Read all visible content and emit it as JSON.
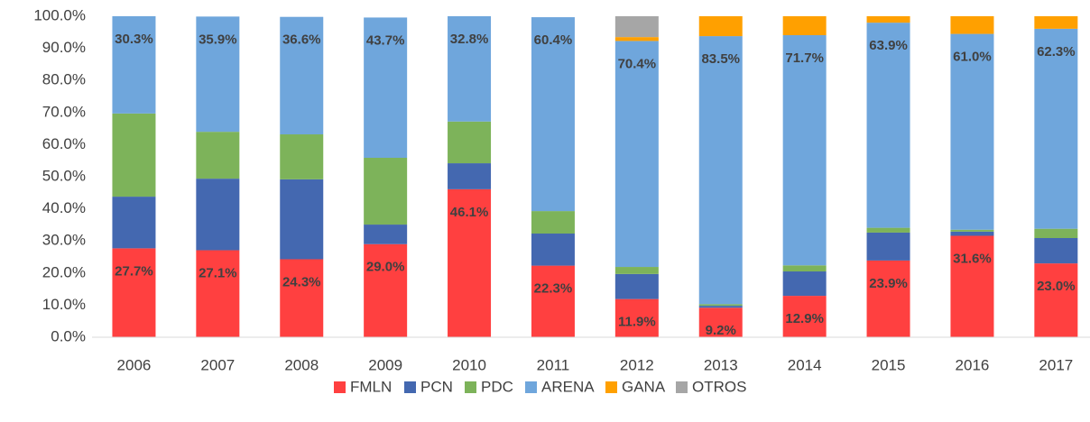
{
  "chart_data": {
    "type": "stacked_bar",
    "categories": [
      "2006",
      "2007",
      "2008",
      "2009",
      "2010",
      "2011",
      "2012",
      "2013",
      "2014",
      "2015",
      "2016",
      "2017"
    ],
    "series": [
      {
        "name": "FMLN",
        "color": "#ff4040",
        "values": [
          27.7,
          27.1,
          24.3,
          29.0,
          46.1,
          22.3,
          11.9,
          9.2,
          12.9,
          23.9,
          31.6,
          23.0
        ],
        "value_labels": [
          "27.7%",
          "27.1%",
          "24.3%",
          "29.0%",
          "46.1%",
          "22.3%",
          "11.9%",
          "9.2%",
          "12.9%",
          "23.9%",
          "31.6%",
          "23.0%"
        ]
      },
      {
        "name": "PCN",
        "color": "#4468b0",
        "values": [
          16.1,
          22.3,
          24.9,
          6.1,
          8.1,
          10.0,
          7.8,
          0.6,
          7.6,
          8.7,
          1.3,
          7.9
        ]
      },
      {
        "name": "PDC",
        "color": "#7db35a",
        "values": [
          25.9,
          14.6,
          14.0,
          20.8,
          13.0,
          7.0,
          2.2,
          0.5,
          1.9,
          1.5,
          0.6,
          2.9
        ]
      },
      {
        "name": "ARENA",
        "color": "#6fa6dc",
        "values": [
          30.3,
          35.9,
          36.6,
          43.7,
          32.8,
          60.4,
          70.4,
          83.5,
          71.7,
          63.9,
          61.0,
          62.3
        ],
        "value_labels": [
          "30.3%",
          "35.9%",
          "36.6%",
          "43.7%",
          "32.8%",
          "60.4%",
          "70.4%",
          "83.5%",
          "71.7%",
          "63.9%",
          "61.0%",
          "62.3%"
        ]
      },
      {
        "name": "GANA",
        "color": "#ffa000",
        "values": [
          0,
          0,
          0,
          0,
          0,
          0,
          1.2,
          6.2,
          5.9,
          2.0,
          5.5,
          3.9
        ]
      },
      {
        "name": "OTROS",
        "color": "#a6a6a6",
        "values": [
          0,
          0,
          0,
          0,
          0,
          0,
          6.5,
          0,
          0,
          0,
          0,
          0
        ]
      }
    ],
    "ylim": [
      0,
      100
    ],
    "yticks": [
      {
        "value": 0,
        "label": "0.0%"
      },
      {
        "value": 10,
        "label": "10.0%"
      },
      {
        "value": 20,
        "label": "20.0%"
      },
      {
        "value": 30,
        "label": "30.0%"
      },
      {
        "value": 40,
        "label": "40.0%"
      },
      {
        "value": 50,
        "label": "50.0%"
      },
      {
        "value": 60,
        "label": "60.0%"
      },
      {
        "value": 70,
        "label": "70.0%"
      },
      {
        "value": 80,
        "label": "80.0%"
      },
      {
        "value": 90,
        "label": "90.0%"
      },
      {
        "value": 100,
        "label": "100.0%"
      }
    ],
    "grid": false,
    "legend": "bottom"
  }
}
